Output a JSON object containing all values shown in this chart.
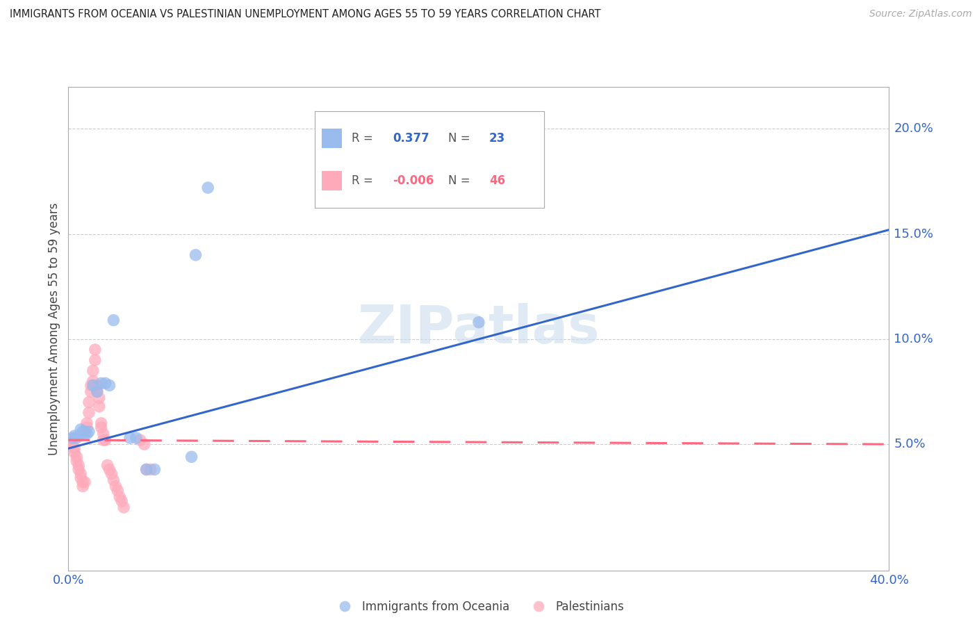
{
  "title": "IMMIGRANTS FROM OCEANIA VS PALESTINIAN UNEMPLOYMENT AMONG AGES 55 TO 59 YEARS CORRELATION CHART",
  "source": "Source: ZipAtlas.com",
  "ylabel": "Unemployment Among Ages 55 to 59 years",
  "xlim": [
    0.0,
    0.4
  ],
  "ylim": [
    -0.01,
    0.22
  ],
  "yticks": [
    0.05,
    0.1,
    0.15,
    0.2
  ],
  "ytick_labels": [
    "5.0%",
    "10.0%",
    "15.0%",
    "20.0%"
  ],
  "watermark": "ZIPatlas",
  "blue_color": "#3366cc",
  "pink_color": "#ff6680",
  "blue_scatter_color": "#99bbee",
  "pink_scatter_color": "#ffaabb",
  "legend_entries": [
    {
      "label": "Immigrants from Oceania",
      "R": "0.377",
      "N": "23",
      "color": "#3366cc",
      "scatter_color": "#99bbee"
    },
    {
      "label": "Palestinians",
      "R": "-0.006",
      "N": "46",
      "color": "#ff6680",
      "scatter_color": "#ffaabb"
    }
  ],
  "oceania_points": [
    [
      0.002,
      0.053
    ],
    [
      0.003,
      0.054
    ],
    [
      0.004,
      0.053
    ],
    [
      0.005,
      0.054
    ],
    [
      0.006,
      0.057
    ],
    [
      0.007,
      0.056
    ],
    [
      0.008,
      0.056
    ],
    [
      0.009,
      0.055
    ],
    [
      0.01,
      0.056
    ],
    [
      0.012,
      0.078
    ],
    [
      0.014,
      0.075
    ],
    [
      0.016,
      0.079
    ],
    [
      0.018,
      0.079
    ],
    [
      0.02,
      0.078
    ],
    [
      0.022,
      0.109
    ],
    [
      0.03,
      0.053
    ],
    [
      0.033,
      0.053
    ],
    [
      0.038,
      0.038
    ],
    [
      0.042,
      0.038
    ],
    [
      0.06,
      0.044
    ],
    [
      0.062,
      0.14
    ],
    [
      0.068,
      0.172
    ],
    [
      0.2,
      0.108
    ]
  ],
  "palestinian_points": [
    [
      0.001,
      0.052
    ],
    [
      0.002,
      0.05
    ],
    [
      0.003,
      0.048
    ],
    [
      0.003,
      0.046
    ],
    [
      0.004,
      0.044
    ],
    [
      0.004,
      0.042
    ],
    [
      0.005,
      0.04
    ],
    [
      0.005,
      0.038
    ],
    [
      0.006,
      0.036
    ],
    [
      0.006,
      0.034
    ],
    [
      0.007,
      0.032
    ],
    [
      0.007,
      0.03
    ],
    [
      0.008,
      0.032
    ],
    [
      0.008,
      0.055
    ],
    [
      0.009,
      0.058
    ],
    [
      0.009,
      0.06
    ],
    [
      0.01,
      0.065
    ],
    [
      0.01,
      0.07
    ],
    [
      0.011,
      0.075
    ],
    [
      0.011,
      0.078
    ],
    [
      0.012,
      0.08
    ],
    [
      0.012,
      0.085
    ],
    [
      0.013,
      0.09
    ],
    [
      0.013,
      0.095
    ],
    [
      0.014,
      0.078
    ],
    [
      0.014,
      0.075
    ],
    [
      0.015,
      0.072
    ],
    [
      0.015,
      0.068
    ],
    [
      0.016,
      0.06
    ],
    [
      0.016,
      0.058
    ],
    [
      0.017,
      0.055
    ],
    [
      0.017,
      0.052
    ],
    [
      0.018,
      0.052
    ],
    [
      0.019,
      0.04
    ],
    [
      0.02,
      0.038
    ],
    [
      0.021,
      0.036
    ],
    [
      0.022,
      0.033
    ],
    [
      0.023,
      0.03
    ],
    [
      0.024,
      0.028
    ],
    [
      0.025,
      0.025
    ],
    [
      0.026,
      0.023
    ],
    [
      0.027,
      0.02
    ],
    [
      0.035,
      0.052
    ],
    [
      0.037,
      0.05
    ],
    [
      0.038,
      0.038
    ],
    [
      0.04,
      0.038
    ]
  ],
  "oceania_trend_x": [
    0.0,
    0.4
  ],
  "oceania_trend_y": [
    0.048,
    0.152
  ],
  "palestinian_trend_x": [
    0.0,
    0.4
  ],
  "palestinian_trend_y": [
    0.052,
    0.05
  ]
}
